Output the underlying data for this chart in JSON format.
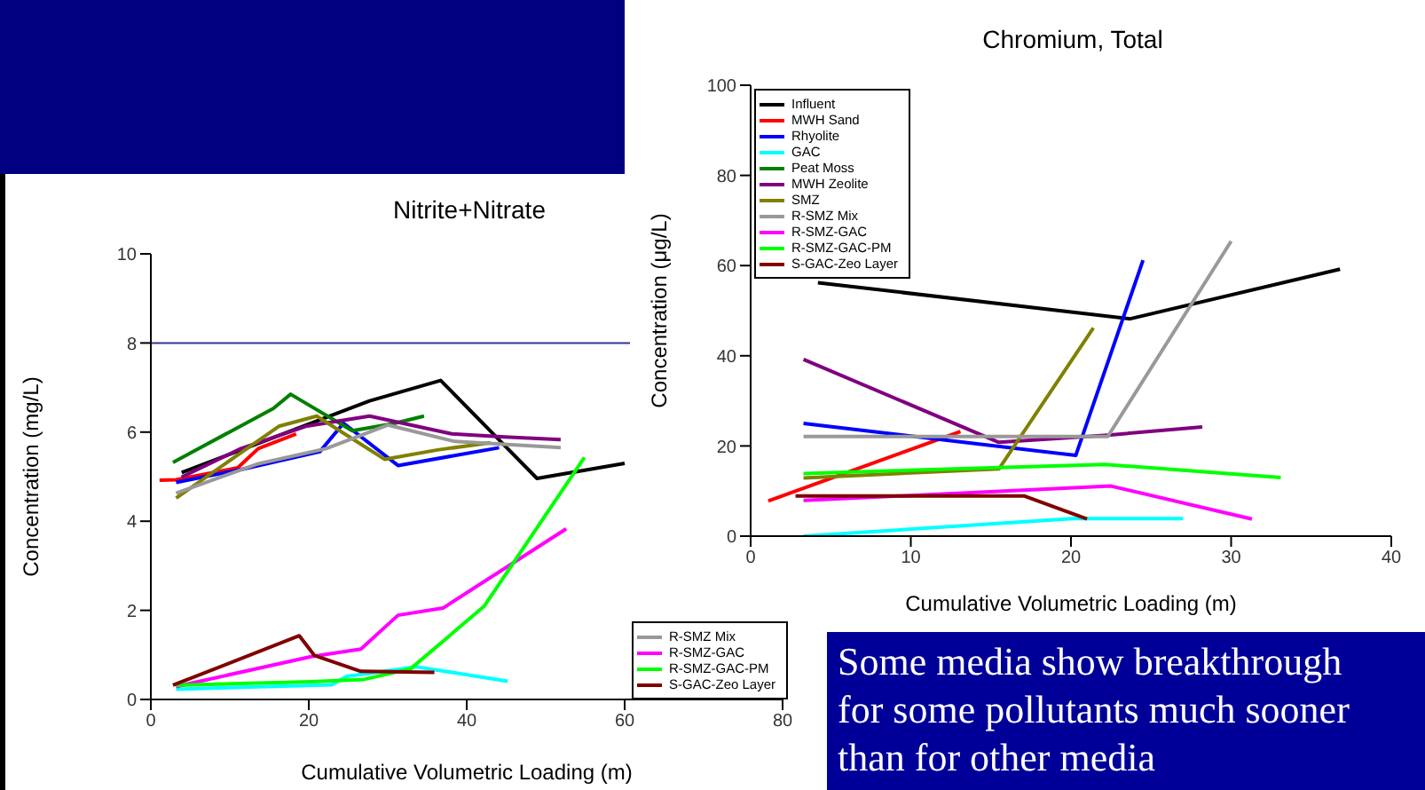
{
  "chart_data": [
    {
      "type": "line",
      "title": "Nitrite+Nitrate",
      "xlabel": "Cumulative Volumetric Loading (m)",
      "ylabel": "Concentration (mg/L)",
      "xlim": [
        0,
        80
      ],
      "xticks": [
        0,
        20,
        40,
        60,
        80
      ],
      "ylim": [
        0,
        10
      ],
      "yticks": [
        0,
        2,
        4,
        6,
        8,
        10
      ],
      "grid": false,
      "legend": "bottom right",
      "marker": "none",
      "line_style": "solid",
      "ref_lines": [
        {
          "axis": "y",
          "value": 8,
          "color": "#333399"
        }
      ],
      "series": [
        {
          "color": "#000000",
          "x": [
            3.9,
            21.8,
            27.7,
            36.7,
            48.9,
            60
          ],
          "values": [
            5.09,
            6.3,
            6.7,
            7.16,
            4.96,
            5.3
          ]
        },
        {
          "color": "#ff0000",
          "x": [
            1.1,
            3.2,
            11,
            13.6,
            18.4
          ],
          "values": [
            4.92,
            4.93,
            5.2,
            5.63,
            5.96
          ]
        },
        {
          "color": "#0000ff",
          "x": [
            3.2,
            11.4,
            21.4,
            24.4,
            31.3,
            44.1
          ],
          "values": [
            4.87,
            5.16,
            5.56,
            6.2,
            5.25,
            5.65
          ]
        },
        {
          "color": "#00ffff",
          "x": [
            3.2,
            22.9,
            24.8,
            33.7,
            45.2
          ],
          "values": [
            0.23,
            0.33,
            0.52,
            0.73,
            0.41
          ]
        },
        {
          "color": "#008000",
          "x": [
            2.8,
            15.5,
            17.7,
            25.5,
            30.7,
            34.6
          ],
          "values": [
            5.32,
            6.53,
            6.85,
            6.03,
            6.19,
            6.36
          ]
        },
        {
          "color": "#800080",
          "x": [
            3.9,
            11.4,
            19.6,
            27.7,
            32.9,
            38.1,
            44.8,
            51.9
          ],
          "values": [
            4.99,
            5.63,
            6.13,
            6.36,
            6.16,
            5.96,
            5.89,
            5.83
          ]
        },
        {
          "color": "#808000",
          "x": [
            3.2,
            16.2,
            21,
            29.6,
            36.3,
            43
          ],
          "values": [
            4.52,
            6.13,
            6.36,
            5.39,
            5.6,
            5.76
          ]
        },
        {
          "name": "R-SMZ Mix",
          "color": "#999999",
          "x": [
            3.2,
            13.6,
            22.2,
            30,
            38.5,
            51.9
          ],
          "values": [
            4.63,
            5.29,
            5.63,
            6.16,
            5.79,
            5.65
          ]
        },
        {
          "name": "R-SMZ-GAC",
          "color": "#ff00ff",
          "x": [
            3.2,
            20.3,
            26.6,
            31.3,
            37,
            52.6
          ],
          "values": [
            0.29,
            0.96,
            1.13,
            1.89,
            2.05,
            3.83
          ]
        },
        {
          "name": "R-SMZ-GAC-PM",
          "color": "#00ff00",
          "x": [
            3.2,
            20.3,
            27,
            32.9,
            42.2,
            54.9
          ],
          "values": [
            0.32,
            0.4,
            0.45,
            0.69,
            2.09,
            5.43
          ]
        },
        {
          "name": "S-GAC-Zeo Layer",
          "color": "#800000",
          "x": [
            2.8,
            18.8,
            20.7,
            26.6,
            35.9
          ],
          "values": [
            0.32,
            1.43,
            0.99,
            0.63,
            0.61
          ]
        }
      ]
    },
    {
      "type": "line",
      "title": "Chromium, Total",
      "xlabel": "Cumulative Volumetric Loading (m)",
      "ylabel": "Concentration (μg/L)",
      "xlim": [
        0,
        40
      ],
      "xticks": [
        0,
        10,
        20,
        30,
        40
      ],
      "ylim": [
        0,
        100
      ],
      "yticks": [
        0,
        20,
        40,
        60,
        80,
        100
      ],
      "grid": false,
      "legend": "top left",
      "marker": "none",
      "line_style": "solid",
      "annotations": [
        "Some media show breakthrough for some pollutants much sooner than for other media"
      ],
      "series": [
        {
          "name": "Influent",
          "color": "#000000",
          "x": [
            4.2,
            23.7,
            36.8
          ],
          "values": [
            56.2,
            48.2,
            59.2
          ]
        },
        {
          "name": "MWH Sand",
          "color": "#ff0000",
          "x": [
            1.1,
            13.1
          ],
          "values": [
            7.8,
            23.2
          ]
        },
        {
          "name": "Rhyolite",
          "color": "#0000ff",
          "x": [
            3.3,
            20.3,
            24.5
          ],
          "values": [
            25,
            17.9,
            61.2
          ]
        },
        {
          "name": "GAC",
          "color": "#00ffff",
          "x": [
            3.3,
            20.1,
            27
          ],
          "values": [
            0,
            3.9,
            3.9
          ]
        },
        {
          "name": "Peat Moss",
          "color": "#008000"
        },
        {
          "name": "MWH Zeolite",
          "color": "#800080",
          "x": [
            3.3,
            15.5,
            22.3,
            28.2
          ],
          "values": [
            39.2,
            20.8,
            22.4,
            24.2
          ]
        },
        {
          "name": "SMZ",
          "color": "#808000",
          "x": [
            3.3,
            15.5,
            21.4
          ],
          "values": [
            12.9,
            14.9,
            46.2
          ]
        },
        {
          "name": "R-SMZ Mix",
          "color": "#999999",
          "x": [
            3.3,
            22.3,
            30
          ],
          "values": [
            22.1,
            22.1,
            65.4
          ]
        },
        {
          "name": "R-SMZ-GAC",
          "color": "#ff00ff",
          "x": [
            3.3,
            22.5,
            31.3
          ],
          "values": [
            7.9,
            11.1,
            3.8
          ]
        },
        {
          "name": "R-SMZ-GAC-PM",
          "color": "#00ff00",
          "x": [
            3.3,
            22.1,
            33.1
          ],
          "values": [
            13.9,
            15.9,
            13
          ]
        },
        {
          "name": "S-GAC-Zeo Layer",
          "color": "#800000",
          "x": [
            2.8,
            17.1,
            21
          ],
          "values": [
            8.9,
            8.9,
            3.8
          ]
        }
      ]
    }
  ]
}
